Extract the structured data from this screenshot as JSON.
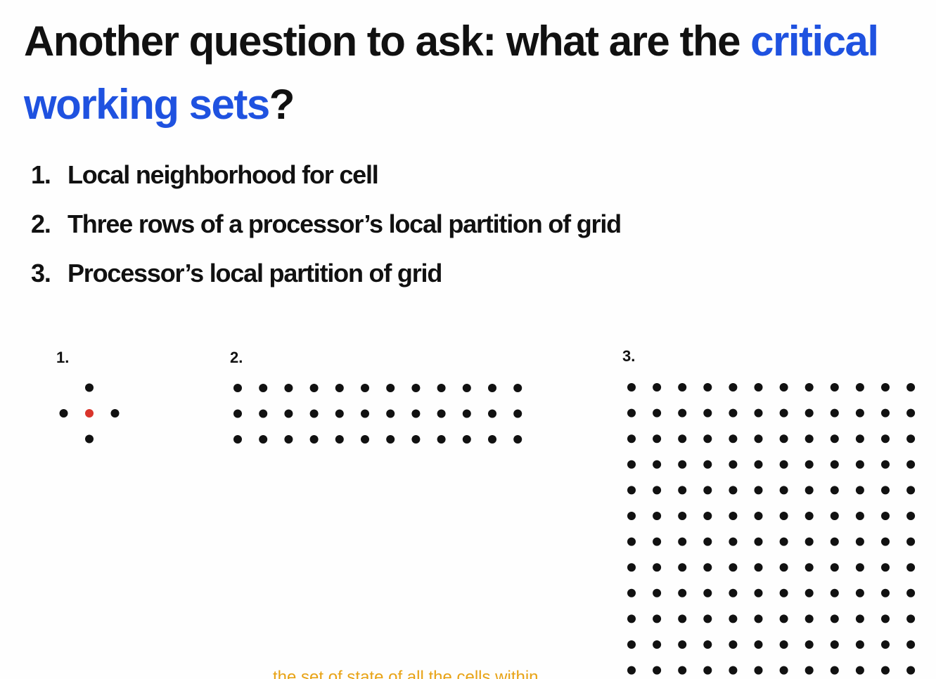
{
  "slide": {
    "title_part1": "Another question to ask: what are the ",
    "title_highlight1": "critical",
    "title_highlight2": "working sets",
    "title_end": "?",
    "highlight_color": "#1f52e0",
    "items": [
      {
        "number": "1.",
        "text": "Local neighborhood for cell"
      },
      {
        "number": "2.",
        "text": "Three rows of a processor’s local partition of grid"
      },
      {
        "number": "3.",
        "text": "Processor’s local partition of grid"
      }
    ]
  },
  "diagrams": [
    {
      "label": "1.",
      "kind": "stencil",
      "center_color": "#d9342b",
      "dot_color": "#111111"
    },
    {
      "label": "2.",
      "kind": "grid",
      "rows": 3,
      "cols": 12,
      "dot_color": "#111111"
    },
    {
      "label": "3.",
      "kind": "grid",
      "rows": 12,
      "cols": 12,
      "dot_color": "#111111"
    }
  ],
  "caption": {
    "text": "the set of state of all the cells within",
    "color": "#e8a316"
  }
}
